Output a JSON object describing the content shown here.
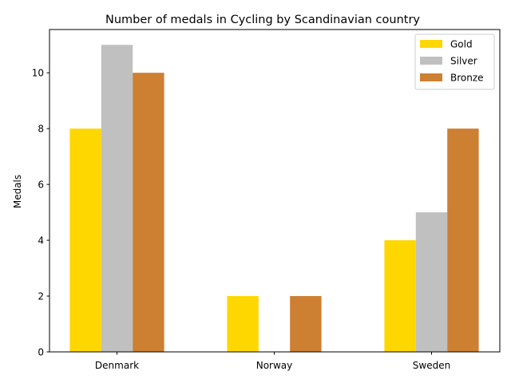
{
  "chart_data": {
    "type": "bar",
    "title": "Number of medals in Cycling by Scandinavian country",
    "xlabel": "",
    "ylabel": "Medals",
    "categories": [
      "Denmark",
      "Norway",
      "Sweden"
    ],
    "series": [
      {
        "name": "Gold",
        "values": [
          8,
          2,
          4
        ],
        "color": "#FFD700"
      },
      {
        "name": "Silver",
        "values": [
          11,
          0,
          5
        ],
        "color": "#C0C0C0"
      },
      {
        "name": "Bronze",
        "values": [
          10,
          2,
          8
        ],
        "color": "#CD7F32"
      }
    ],
    "ylim": [
      0,
      11.55
    ],
    "yticks": [
      "0",
      "2",
      "4",
      "6",
      "8",
      "10"
    ],
    "grid": false,
    "legend_position": "top-right"
  }
}
